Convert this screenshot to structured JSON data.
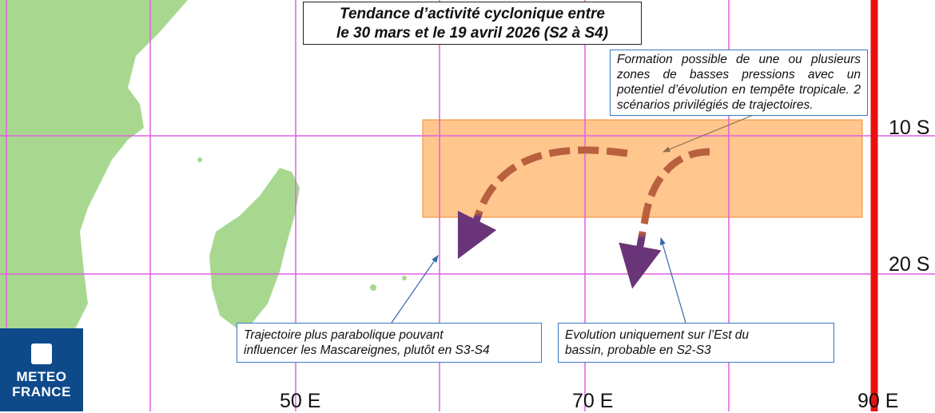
{
  "title": {
    "line1": "Tendance d’activité cyclonique entre",
    "line2": "le 30 mars et le 19 avril 2026 (S2 à S4)"
  },
  "notes": {
    "formation": "Formation possible de une ou plusieurs zones de basses pressions avec un potentiel d’évolution en tempête tropicale. 2 scénarios privilégiés de trajectoires.",
    "parabolic": {
      "line1": "Trajectoire plus parabolique pouvant",
      "line2": "influencer les Mascareignes, plutôt en S3-S4"
    },
    "east": {
      "line1": "Evolution uniquement sur l’Est du",
      "line2": "bassin, probable en S2-S3"
    }
  },
  "axes": {
    "lat": [
      "10 S",
      "20 S"
    ],
    "lon": [
      "50 E",
      "70 E",
      "90 E"
    ]
  },
  "logo": {
    "line1": "METEO",
    "line2": "FRANCE"
  },
  "colors": {
    "grid": "#e060e0",
    "zone": "#ffc48c",
    "track_start": "#b9603e",
    "track_end": "#6a3578",
    "limit": "#e81010",
    "land": "#a8d890",
    "logo": "#0e4a8a"
  }
}
